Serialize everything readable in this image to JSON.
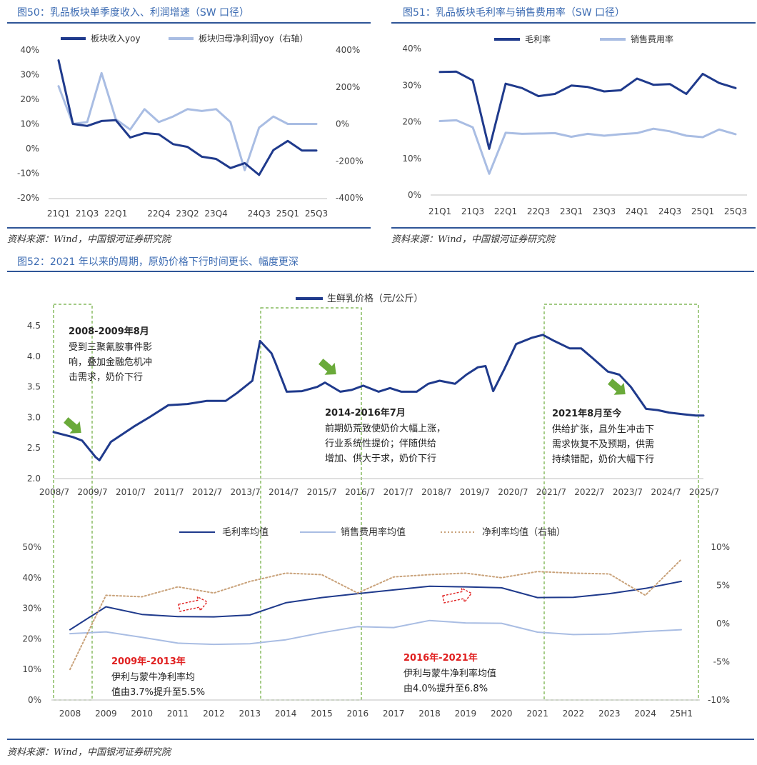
{
  "fig50": {
    "title": "图50：乳品板块单季度收入、利润增速（SW 口径）",
    "source": "资料来源：Wind，中国银河证券研究院"
  },
  "fig51": {
    "title": "图51：乳品板块毛利率与销售费用率（SW 口径）",
    "source": "资料来源：Wind，中国银河证券研究院"
  },
  "fig52": {
    "title": "图52：2021 年以来的周期，原奶价格下行时间更长、幅度更深",
    "source": "资料来源：Wind，中国银河证券研究院",
    "annotations": {
      "a1_title": "2008-2009年8月",
      "a1_l1": "受到三聚氰胺事件影",
      "a1_l2": "响，叠加金融危机冲",
      "a1_l3": "击需求，奶价下行",
      "a2_title": "2014-2016年7月",
      "a2_l1": "前期奶荒致使奶价大幅上涨，",
      "a2_l2": "行业系统性提价；伴随供给",
      "a2_l3": "增加、供大于求，奶价下行",
      "a3_title": "2021年8月至今",
      "a3_l1": "供给扩张，且外生冲击下",
      "a3_l2": "需求恢复不及预期，供需",
      "a3_l3": "持续错配，奶价大幅下行",
      "b1_title": "2009年-2013年",
      "b1_l1": "伊利与蒙牛净利率均",
      "b1_l2": "值由3.7%提升至5.5%",
      "b2_title": "2016年-2021年",
      "b2_l1": "伊利与蒙牛净利率均值",
      "b2_l2": "由4.0%提升至6.8%"
    }
  },
  "colors": {
    "dark": "#1f3a8c",
    "light": "#a9bde3",
    "dotted": "#c9a27a",
    "green": "#6aaa3a",
    "red": "#e02020"
  },
  "chart_data": [
    {
      "id": "fig50",
      "type": "line",
      "categories": [
        "21Q1",
        "21Q2",
        "21Q3",
        "21Q4",
        "22Q1",
        "22Q2",
        "22Q3",
        "22Q4",
        "23Q1",
        "23Q2",
        "23Q3",
        "23Q4",
        "24Q1",
        "24Q2",
        "24Q3",
        "24Q4",
        "25Q1",
        "25Q2",
        "25Q3"
      ],
      "tick_labels": [
        "21Q1",
        "21Q3",
        "22Q1",
        "22Q4",
        "23Q2",
        "23Q4",
        "24Q3",
        "25Q1",
        "25Q3"
      ],
      "series": [
        {
          "name": "板块收入yoy",
          "axis": "left",
          "values": [
            35.8,
            10,
            9.2,
            11.2,
            11.5,
            4.5,
            6.3,
            5.8,
            1.8,
            0.7,
            -3.3,
            -4.2,
            -7.9,
            -5.9,
            -10.7,
            -0.6,
            3.1,
            -0.8,
            -0.8
          ]
        },
        {
          "name": "板块归母净利润yoy（右轴）",
          "axis": "right",
          "values": [
            204,
            0,
            10,
            275,
            25,
            -30,
            80,
            10,
            40,
            80,
            70,
            80,
            10,
            -250,
            -20,
            40,
            0,
            0,
            0
          ]
        }
      ],
      "ylim_left": [
        -20,
        40
      ],
      "ylim_right": [
        -400,
        400
      ],
      "yticks_left": [
        "40%",
        "30%",
        "20%",
        "10%",
        "0%",
        "-10%",
        "-20%"
      ],
      "yticks_right": [
        "400%",
        "200%",
        "0%",
        "-200%",
        "-400%"
      ]
    },
    {
      "id": "fig51",
      "type": "line",
      "categories": [
        "21Q1",
        "21Q2",
        "21Q3",
        "21Q4",
        "22Q1",
        "22Q2",
        "22Q3",
        "22Q4",
        "23Q1",
        "23Q2",
        "23Q3",
        "23Q4",
        "24Q1",
        "24Q2",
        "24Q3",
        "24Q4",
        "25Q1",
        "25Q2",
        "25Q3"
      ],
      "tick_labels": [
        "21Q1",
        "21Q3",
        "22Q1",
        "22Q3",
        "23Q1",
        "23Q3",
        "24Q1",
        "24Q3",
        "25Q1",
        "25Q3"
      ],
      "series": [
        {
          "name": "毛利率",
          "values": [
            33.6,
            33.7,
            31.3,
            12.6,
            30.4,
            29.2,
            27,
            27.6,
            29.9,
            29.5,
            28.3,
            28.6,
            31.8,
            30.1,
            30.3,
            27.6,
            33.1,
            30.6,
            29.2
          ]
        },
        {
          "name": "销售费用率",
          "values": [
            20.2,
            20.4,
            18.5,
            5.8,
            17,
            16.7,
            16.8,
            16.9,
            15.9,
            16.7,
            16.2,
            16.6,
            16.9,
            18.1,
            17.4,
            16.2,
            15.8,
            17.9,
            16.6
          ]
        }
      ],
      "ylim": [
        0,
        40
      ],
      "yticks": [
        "40%",
        "30%",
        "20%",
        "10%",
        "0%"
      ]
    },
    {
      "id": "fig52_top",
      "type": "line",
      "legend": "生鲜乳价格（元/公斤）",
      "x_ticks": [
        "2008/7",
        "2009/7",
        "2010/7",
        "2011/7",
        "2012/7",
        "2013/7",
        "2014/7",
        "2015/7",
        "2016/7",
        "2017/7",
        "2018/7",
        "2019/7",
        "2020/7",
        "2021/7",
        "2022/7",
        "2023/7",
        "2024/7",
        "2025/7"
      ],
      "x_years": [
        2008.5,
        2009,
        2009.25,
        2009.6,
        2009.7,
        2010,
        2010.6,
        2011,
        2011.5,
        2012,
        2012.5,
        2013,
        2013.3,
        2013.7,
        2013.9,
        2014.2,
        2014.3,
        2014.6,
        2015,
        2015.4,
        2015.6,
        2016,
        2016.3,
        2016.6,
        2017,
        2017.3,
        2017.6,
        2018,
        2018.3,
        2018.6,
        2019,
        2019.3,
        2019.6,
        2019.8,
        2020,
        2020.3,
        2020.6,
        2021,
        2021.3,
        2021.6,
        2022,
        2022.3,
        2022.6,
        2023,
        2023.3,
        2023.6,
        2024,
        2024.3,
        2024.6,
        2025,
        2025.3,
        2025.5
      ],
      "values": [
        2.76,
        2.68,
        2.62,
        2.35,
        2.3,
        2.6,
        2.85,
        3.0,
        3.2,
        3.22,
        3.27,
        3.27,
        3.4,
        3.6,
        4.25,
        4.05,
        3.9,
        3.42,
        3.43,
        3.5,
        3.57,
        3.42,
        3.45,
        3.52,
        3.42,
        3.48,
        3.42,
        3.42,
        3.55,
        3.6,
        3.55,
        3.7,
        3.82,
        3.84,
        3.43,
        3.8,
        4.2,
        4.3,
        4.35,
        4.25,
        4.13,
        4.13,
        3.97,
        3.75,
        3.7,
        3.5,
        3.14,
        3.12,
        3.08,
        3.05,
        3.03,
        3.03
      ],
      "ylim": [
        2.0,
        4.5
      ],
      "yticks": [
        "4.5",
        "4.0",
        "3.5",
        "3.0",
        "2.5",
        "2.0"
      ]
    },
    {
      "id": "fig52_bottom",
      "type": "line",
      "categories": [
        "2008",
        "2009",
        "2010",
        "2011",
        "2012",
        "2013",
        "2014",
        "2015",
        "2016",
        "2017",
        "2018",
        "2019",
        "2020",
        "2021",
        "2022",
        "2023",
        "2024",
        "25H1"
      ],
      "series": [
        {
          "name": "毛利率均值",
          "axis": "left",
          "values": [
            23,
            30.5,
            28,
            27.3,
            27.2,
            27.8,
            31.8,
            33.5,
            34.8,
            36,
            37.2,
            37,
            36.7,
            33.5,
            33.6,
            34.8,
            36.5,
            38.8
          ]
        },
        {
          "name": "销售费用率均值",
          "axis": "left",
          "values": [
            21.7,
            22.3,
            20.5,
            18.6,
            18.2,
            18.4,
            19.7,
            22,
            24,
            23.7,
            26,
            25.2,
            25.1,
            22.2,
            21.4,
            21.6,
            22.4,
            23
          ]
        },
        {
          "name": "净利率均值（右轴）",
          "axis": "right",
          "values": [
            -6,
            3.7,
            3.5,
            4.8,
            4.0,
            5.5,
            6.6,
            6.4,
            4.0,
            6.1,
            6.4,
            6.6,
            6.0,
            6.8,
            6.6,
            6.5,
            3.7,
            8.4
          ]
        }
      ],
      "ylim_left": [
        0,
        50
      ],
      "ylim_right": [
        -10,
        10
      ],
      "yticks_left": [
        "50%",
        "40%",
        "30%",
        "20%",
        "10%",
        "0%"
      ],
      "yticks_right": [
        "10%",
        "5%",
        "0%",
        "-5%",
        "-10%"
      ]
    }
  ]
}
